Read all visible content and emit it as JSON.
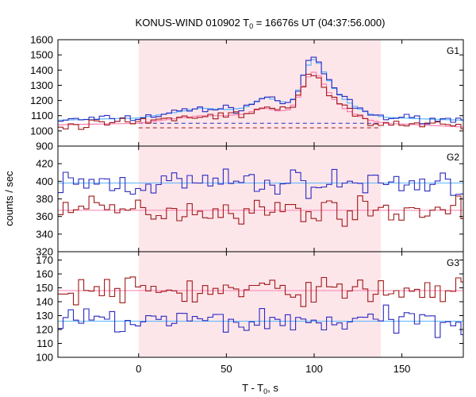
{
  "chart_data": {
    "type": "line",
    "title": "KONUS-WIND 010902 T",
    "title_sub": "0",
    "title_rest": " = 16676s UT (04:37:56.000)",
    "xlabel": "T - T",
    "xlabel_sub": "0",
    "xlabel_rest": ", s",
    "ylabel": "counts / sec",
    "xlim": [
      -46,
      185
    ],
    "x_ticks": [
      0,
      50,
      100,
      150
    ],
    "x_tick_labels": [
      "0",
      "50",
      "100",
      "150"
    ],
    "shaded_interval": [
      0,
      138
    ],
    "bin_width": 2.944,
    "colors": {
      "series_a": "#2a2ac0",
      "series_b": "#a01818",
      "bg_a": "#5ab4ff",
      "bg_b": "#ff7fb0",
      "shade": "#fde6ea"
    },
    "panels": [
      {
        "id": "G1",
        "label": "G1",
        "ylim": [
          900,
          1600
        ],
        "y_ticks": [
          900,
          1000,
          1100,
          1200,
          1300,
          1400,
          1500,
          1600
        ],
        "y_tick_labels": [
          "900",
          "1000",
          "1100",
          "1200",
          "1300",
          "1400",
          "1500",
          "1600"
        ],
        "bg_lines": [
          {
            "series": "a",
            "value": 1050,
            "style": "dashed"
          },
          {
            "series": "b",
            "value": 1020,
            "style": "dashed"
          }
        ],
        "series": [
          {
            "color_key": "series_a",
            "smooth_color_key": "bg_a",
            "profile": [
              [
                -46,
                1070
              ],
              [
                0,
                1085
              ],
              [
                20,
                1120
              ],
              [
                35,
                1150
              ],
              [
                50,
                1140
              ],
              [
                60,
                1150
              ],
              [
                68,
                1200
              ],
              [
                72,
                1225
              ],
              [
                80,
                1195
              ],
              [
                86,
                1185
              ],
              [
                90,
                1240
              ],
              [
                94,
                1370
              ],
              [
                98,
                1460
              ],
              [
                101,
                1475
              ],
              [
                104,
                1420
              ],
              [
                108,
                1340
              ],
              [
                112,
                1270
              ],
              [
                118,
                1200
              ],
              [
                125,
                1150
              ],
              [
                132,
                1110
              ],
              [
                140,
                1090
              ],
              [
                160,
                1080
              ],
              [
                185,
                1070
              ]
            ],
            "noise": 18
          },
          {
            "color_key": "series_b",
            "smooth_color_key": "bg_b",
            "profile": [
              [
                -46,
                1040
              ],
              [
                0,
                1050
              ],
              [
                20,
                1080
              ],
              [
                35,
                1100
              ],
              [
                50,
                1100
              ],
              [
                60,
                1110
              ],
              [
                68,
                1140
              ],
              [
                72,
                1150
              ],
              [
                80,
                1130
              ],
              [
                86,
                1140
              ],
              [
                90,
                1200
              ],
              [
                94,
                1300
              ],
              [
                98,
                1380
              ],
              [
                101,
                1390
              ],
              [
                104,
                1340
              ],
              [
                108,
                1260
              ],
              [
                112,
                1200
              ],
              [
                118,
                1140
              ],
              [
                125,
                1100
              ],
              [
                132,
                1070
              ],
              [
                140,
                1050
              ],
              [
                160,
                1040
              ],
              [
                185,
                1025
              ]
            ],
            "noise": 20
          }
        ]
      },
      {
        "id": "G2",
        "label": "G2",
        "ylim": [
          320,
          440
        ],
        "y_ticks": [
          320,
          340,
          360,
          380,
          400,
          420
        ],
        "y_tick_labels": [
          "320",
          "340",
          "360",
          "380",
          "400",
          "420"
        ],
        "bg_lines": [
          {
            "series": "a",
            "value": 398,
            "style": "solid"
          },
          {
            "series": "b",
            "value": 367,
            "style": "solid"
          }
        ],
        "series": [
          {
            "color_key": "series_a",
            "profile": [
              [
                -46,
                398
              ],
              [
                185,
                398
              ]
            ],
            "noise": 11
          },
          {
            "color_key": "series_b",
            "profile": [
              [
                -46,
                367
              ],
              [
                185,
                367
              ]
            ],
            "noise": 10
          }
        ]
      },
      {
        "id": "G3",
        "label": "G3",
        "ylim": [
          100,
          176
        ],
        "y_ticks": [
          100,
          110,
          120,
          130,
          140,
          150,
          160,
          170
        ],
        "y_tick_labels": [
          "100",
          "110",
          "120",
          "130",
          "140",
          "150",
          "160",
          "170"
        ],
        "bg_lines": [
          {
            "series": "b",
            "value": 148,
            "style": "solid"
          },
          {
            "series": "a",
            "value": 126,
            "style": "solid"
          }
        ],
        "series": [
          {
            "color_key": "series_b",
            "profile": [
              [
                -46,
                148
              ],
              [
                185,
                148
              ]
            ],
            "noise": 7
          },
          {
            "color_key": "series_a",
            "profile": [
              [
                -46,
                126
              ],
              [
                185,
                126
              ]
            ],
            "noise": 7
          }
        ]
      }
    ]
  }
}
